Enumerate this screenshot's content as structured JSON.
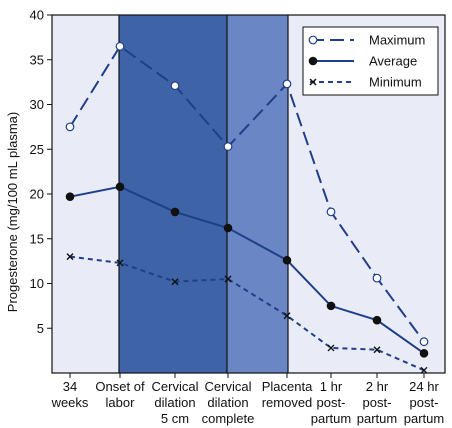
{
  "chart_data": {
    "type": "line",
    "title": "",
    "xlabel": "",
    "ylabel": "Progesterone (mg/100 mL plasma)",
    "ylim": [
      0,
      40
    ],
    "yticks": [
      5,
      10,
      15,
      20,
      25,
      30,
      35,
      40
    ],
    "categories": [
      [
        "34",
        "weeks"
      ],
      [
        "Onset of",
        "labor"
      ],
      [
        "Cervical",
        "dilation",
        "5 cm"
      ],
      [
        "Cervical",
        "dilation",
        "complete"
      ],
      [
        "Placenta",
        "removed"
      ],
      [
        "1 hr",
        "post-",
        "partum"
      ],
      [
        "2 hr",
        "post-",
        "partum"
      ],
      [
        "24 hr",
        "post-",
        "partum"
      ]
    ],
    "shaded_regions": [
      {
        "from_category": 1,
        "to_category": 3,
        "color": "#3e63a6"
      },
      {
        "from_category": 3,
        "to_category": 4,
        "color": "#6a86c4"
      }
    ],
    "plot_background": "#e9ecf7",
    "legend_position": "top-right",
    "series": [
      {
        "name": "Maximum",
        "values": [
          27.5,
          36.5,
          32.1,
          25.3,
          32.3,
          18.0,
          10.6,
          3.5
        ],
        "line_style": "long-dash",
        "marker": "open-circle",
        "color": "#1f3f8a"
      },
      {
        "name": "Average",
        "values": [
          19.7,
          20.8,
          18.0,
          16.2,
          12.6,
          7.5,
          5.9,
          2.2
        ],
        "line_style": "solid",
        "marker": "filled-circle",
        "color": "#1f3f8a"
      },
      {
        "name": "Minimum",
        "values": [
          13.0,
          12.3,
          10.2,
          10.5,
          6.4,
          2.8,
          2.6,
          0.3
        ],
        "line_style": "short-dash",
        "marker": "x",
        "color": "#1f3f8a"
      }
    ]
  }
}
